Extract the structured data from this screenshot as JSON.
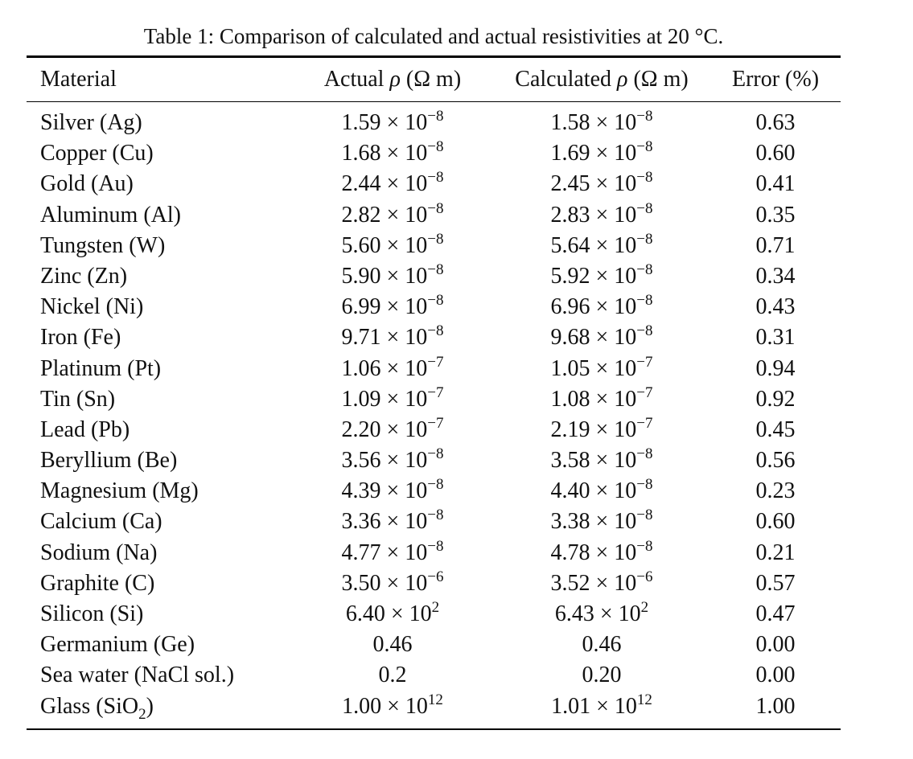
{
  "caption": "Table 1: Comparison of calculated and actual resistivities at 20 °C.",
  "headers": {
    "material": "Material",
    "actual": {
      "label": "Actual",
      "symbol": "ρ",
      "unit": "(Ω m)"
    },
    "calculated": {
      "label": "Calculated",
      "symbol": "ρ",
      "unit": "(Ω m)"
    },
    "error": "Error (%)"
  },
  "times": "× 10",
  "rows": [
    {
      "name": "Silver (Ag)",
      "actual": {
        "m": "1.59",
        "e": "−8"
      },
      "calc": {
        "m": "1.58",
        "e": "−8"
      },
      "error": "0.63"
    },
    {
      "name": "Copper (Cu)",
      "actual": {
        "m": "1.68",
        "e": "−8"
      },
      "calc": {
        "m": "1.69",
        "e": "−8"
      },
      "error": "0.60"
    },
    {
      "name": "Gold (Au)",
      "actual": {
        "m": "2.44",
        "e": "−8"
      },
      "calc": {
        "m": "2.45",
        "e": "−8"
      },
      "error": "0.41"
    },
    {
      "name": "Aluminum (Al)",
      "actual": {
        "m": "2.82",
        "e": "−8"
      },
      "calc": {
        "m": "2.83",
        "e": "−8"
      },
      "error": "0.35"
    },
    {
      "name": "Tungsten (W)",
      "actual": {
        "m": "5.60",
        "e": "−8"
      },
      "calc": {
        "m": "5.64",
        "e": "−8"
      },
      "error": "0.71"
    },
    {
      "name": "Zinc (Zn)",
      "actual": {
        "m": "5.90",
        "e": "−8"
      },
      "calc": {
        "m": "5.92",
        "e": "−8"
      },
      "error": "0.34"
    },
    {
      "name": "Nickel (Ni)",
      "actual": {
        "m": "6.99",
        "e": "−8"
      },
      "calc": {
        "m": "6.96",
        "e": "−8"
      },
      "error": "0.43"
    },
    {
      "name": "Iron (Fe)",
      "actual": {
        "m": "9.71",
        "e": "−8"
      },
      "calc": {
        "m": "9.68",
        "e": "−8"
      },
      "error": "0.31"
    },
    {
      "name": "Platinum (Pt)",
      "actual": {
        "m": "1.06",
        "e": "−7"
      },
      "calc": {
        "m": "1.05",
        "e": "−7"
      },
      "error": "0.94"
    },
    {
      "name": "Tin (Sn)",
      "actual": {
        "m": "1.09",
        "e": "−7"
      },
      "calc": {
        "m": "1.08",
        "e": "−7"
      },
      "error": "0.92"
    },
    {
      "name": "Lead (Pb)",
      "actual": {
        "m": "2.20",
        "e": "−7"
      },
      "calc": {
        "m": "2.19",
        "e": "−7"
      },
      "error": "0.45"
    },
    {
      "name": "Beryllium (Be)",
      "actual": {
        "m": "3.56",
        "e": "−8"
      },
      "calc": {
        "m": "3.58",
        "e": "−8"
      },
      "error": "0.56"
    },
    {
      "name": "Magnesium (Mg)",
      "actual": {
        "m": "4.39",
        "e": "−8"
      },
      "calc": {
        "m": "4.40",
        "e": "−8"
      },
      "error": "0.23"
    },
    {
      "name": "Calcium (Ca)",
      "actual": {
        "m": "3.36",
        "e": "−8"
      },
      "calc": {
        "m": "3.38",
        "e": "−8"
      },
      "error": "0.60"
    },
    {
      "name": "Sodium (Na)",
      "actual": {
        "m": "4.77",
        "e": "−8"
      },
      "calc": {
        "m": "4.78",
        "e": "−8"
      },
      "error": "0.21"
    },
    {
      "name": "Graphite (C)",
      "actual": {
        "m": "3.50",
        "e": "−6"
      },
      "calc": {
        "m": "3.52",
        "e": "−6"
      },
      "error": "0.57"
    },
    {
      "name": "Silicon (Si)",
      "actual": {
        "m": "6.40",
        "e": "2"
      },
      "calc": {
        "m": "6.43",
        "e": "2"
      },
      "error": "0.47"
    },
    {
      "name": "Germanium (Ge)",
      "actual": {
        "m": "0.46"
      },
      "calc": {
        "m": "0.46"
      },
      "error": "0.00"
    },
    {
      "name": "Sea water (NaCl sol.)",
      "actual": {
        "m": "0.2"
      },
      "calc": {
        "m": "0.20"
      },
      "error": "0.00"
    },
    {
      "name": "Glass (SiO",
      "sub": "2",
      "after": ")",
      "actual": {
        "m": "1.00",
        "e": "12"
      },
      "calc": {
        "m": "1.01",
        "e": "12"
      },
      "error": "1.00"
    }
  ]
}
